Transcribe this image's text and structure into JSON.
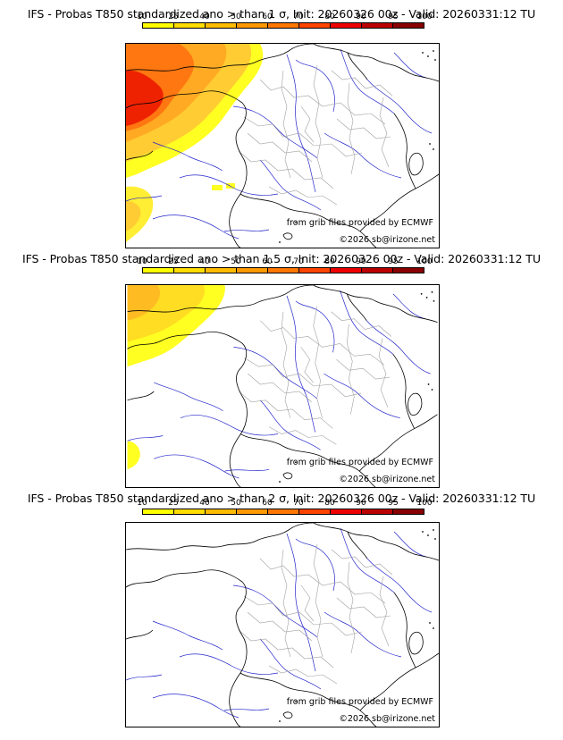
{
  "legend": {
    "labels": [
      "10",
      "25",
      "40",
      "50",
      "60",
      "70",
      "80",
      "90",
      "95",
      "100"
    ],
    "colors": [
      "#ffff00",
      "#ffdd00",
      "#ffbb00",
      "#ff9900",
      "#ff7700",
      "#ff4400",
      "#ee0000",
      "#bb0000",
      "#880000",
      "#550000"
    ]
  },
  "panels": [
    {
      "title": "IFS - Probas T850  standardized ano > than 1 σ, Init: 20260326 00z - Valid: 20260331:12 TU",
      "source_credit": "from grib files provided by ECMWF",
      "copyright": "©2026 sb@irizone.net",
      "max_probability_band": "80"
    },
    {
      "title": "IFS - Probas T850  standardized ano > than 1.5 σ, Init: 20260326 00z - Valid: 20260331:12 TU",
      "source_credit": "from grib files provided by ECMWF",
      "copyright": "©2026 sb@irizone.net",
      "max_probability_band": "50"
    },
    {
      "title": "IFS - Probas T850  standardized ano > than 2 σ, Init: 20260326 00z - Valid: 20260331:12 TU",
      "source_credit": "from grib files provided by ECMWF",
      "copyright": "©2026 sb@irizone.net",
      "max_probability_band": "0"
    }
  ],
  "colors": {
    "coastline": "#000000",
    "rivers": "#2222cc",
    "borders": "#9a9a9a"
  }
}
